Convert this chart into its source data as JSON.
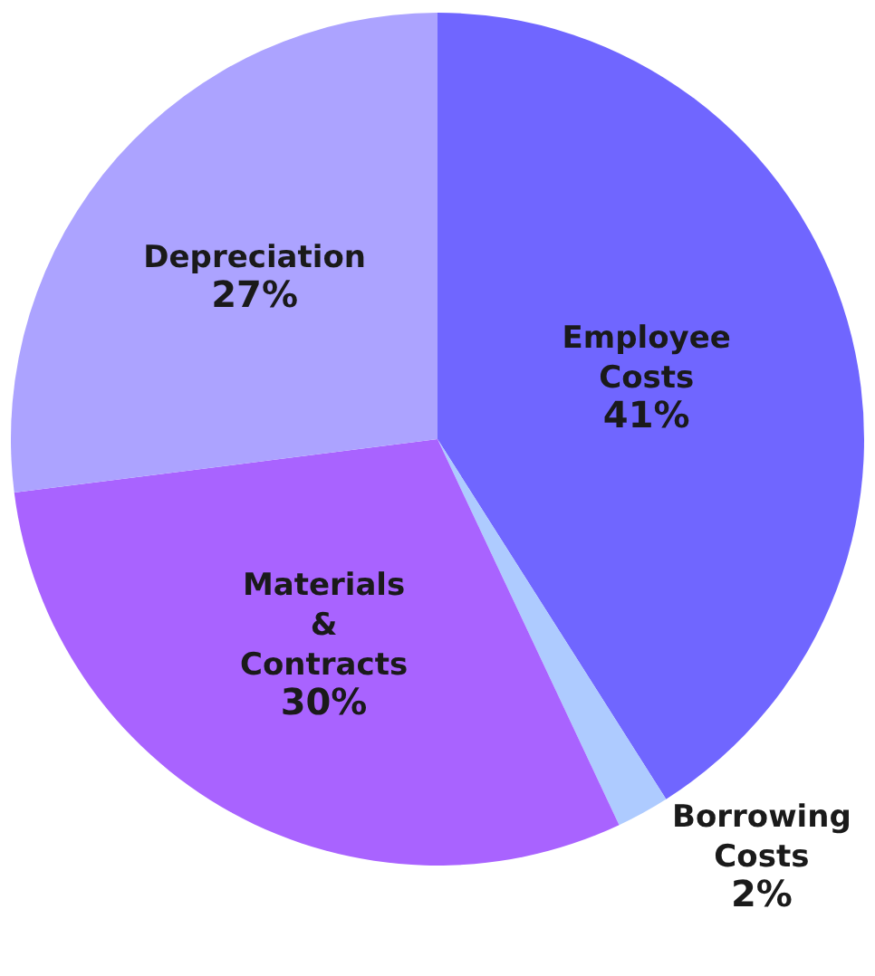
{
  "chart_data": {
    "type": "pie",
    "categories": [
      "Employee Costs",
      "Borrowing Costs",
      "Materials & Contracts",
      "Depreciation"
    ],
    "values": [
      41,
      2,
      30,
      27
    ],
    "value_labels": [
      "41%",
      "2%",
      "30%",
      "27%"
    ],
    "colors": [
      "#7066ff",
      "#aecbff",
      "#a963ff",
      "#aca3ff"
    ],
    "legend": false
  }
}
